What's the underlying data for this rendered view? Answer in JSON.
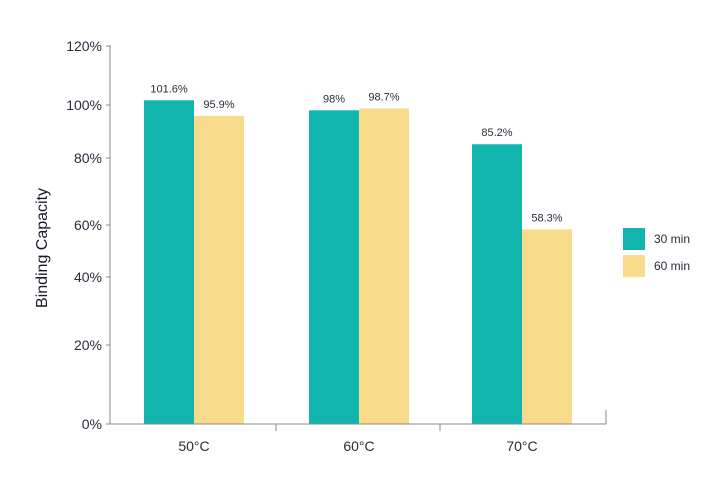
{
  "chart_data": {
    "type": "bar",
    "title": "",
    "xlabel": "",
    "ylabel": "Binding Capacity",
    "categories": [
      "50°C",
      "60°C",
      "70°C"
    ],
    "series": [
      {
        "name": "30 min",
        "color": "#11b5ae",
        "values": [
          101.6,
          98,
          85.2
        ],
        "labels": [
          "101.6%",
          "98%",
          "85.2%"
        ]
      },
      {
        "name": "60 min",
        "color": "#f8dc8c",
        "values": [
          95.9,
          98.7,
          58.3
        ],
        "labels": [
          "95.9%",
          "98.7%",
          "58.3%"
        ]
      }
    ],
    "yticks": [
      {
        "value": 0,
        "label": "0%"
      },
      {
        "value": 20,
        "label": "20%"
      },
      {
        "value": 40,
        "label": "40%"
      },
      {
        "value": 60,
        "label": "60%"
      },
      {
        "value": 80,
        "label": "80%"
      },
      {
        "value": 100,
        "label": "100%"
      },
      {
        "value": 120,
        "label": "120%"
      }
    ],
    "ylim": [
      0,
      120
    ],
    "grid": false,
    "legend": "right",
    "axis_color": "#8a8a8a"
  }
}
